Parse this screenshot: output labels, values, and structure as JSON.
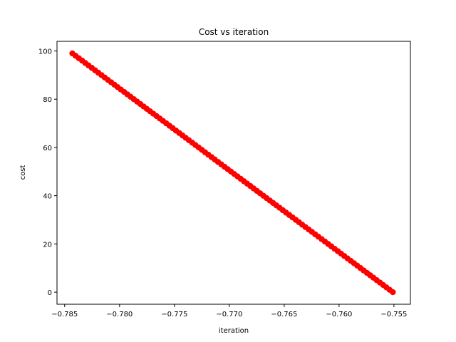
{
  "chart_data": {
    "type": "scatter",
    "title": "Cost vs iteration",
    "xlabel": "iteration",
    "ylabel": "cost",
    "xlim": [
      -0.7857,
      -0.7535
    ],
    "ylim": [
      -5,
      104
    ],
    "x_ticks": [
      -0.785,
      -0.78,
      -0.775,
      -0.77,
      -0.765,
      -0.76,
      -0.755
    ],
    "x_tick_labels": [
      "−0.785",
      "−0.780",
      "−0.775",
      "−0.770",
      "−0.765",
      "−0.760",
      "−0.755"
    ],
    "y_ticks": [
      0,
      20,
      40,
      60,
      80,
      100
    ],
    "y_tick_labels": [
      "0",
      "20",
      "40",
      "60",
      "80",
      "100"
    ],
    "grid": false,
    "series": [
      {
        "color": "#ff0000",
        "marker": "circle",
        "x_start": -0.7843,
        "x_end": -0.7551,
        "y_start": 99,
        "y_end": 0,
        "n_points": 100
      }
    ]
  }
}
